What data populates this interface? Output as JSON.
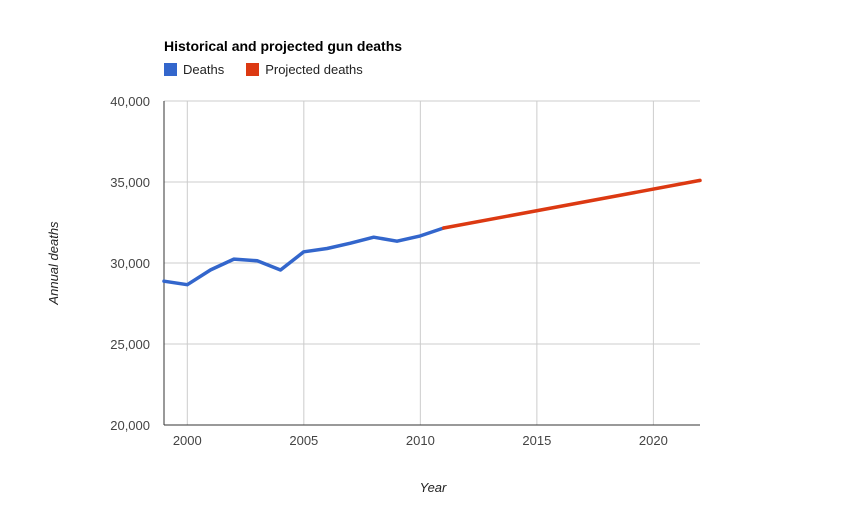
{
  "chart_data": {
    "type": "line",
    "title": "Historical and projected gun deaths",
    "xlabel": "Year",
    "ylabel": "Annual deaths",
    "xlim": [
      1999,
      2022
    ],
    "ylim": [
      20000,
      40000
    ],
    "x_ticks": [
      2000,
      2005,
      2010,
      2015,
      2020
    ],
    "x_tick_labels": [
      "2000",
      "2005",
      "2010",
      "2015",
      "2020"
    ],
    "y_ticks": [
      20000,
      25000,
      30000,
      35000,
      40000
    ],
    "y_tick_labels": [
      "20,000",
      "25,000",
      "30,000",
      "35,000",
      "40,000"
    ],
    "grid": true,
    "legend_position": "top-left",
    "series": [
      {
        "name": "Deaths",
        "color": "#3366cc",
        "x": [
          1999,
          2000,
          2001,
          2002,
          2003,
          2004,
          2005,
          2006,
          2007,
          2008,
          2009,
          2010,
          2011
        ],
        "y": [
          28874,
          28663,
          29573,
          30242,
          30136,
          29569,
          30694,
          30896,
          31224,
          31593,
          31347,
          31672,
          32163
        ]
      },
      {
        "name": "Projected deaths",
        "color": "#dc3912",
        "x": [
          2011,
          2022
        ],
        "y": [
          32163,
          35100
        ]
      }
    ]
  }
}
